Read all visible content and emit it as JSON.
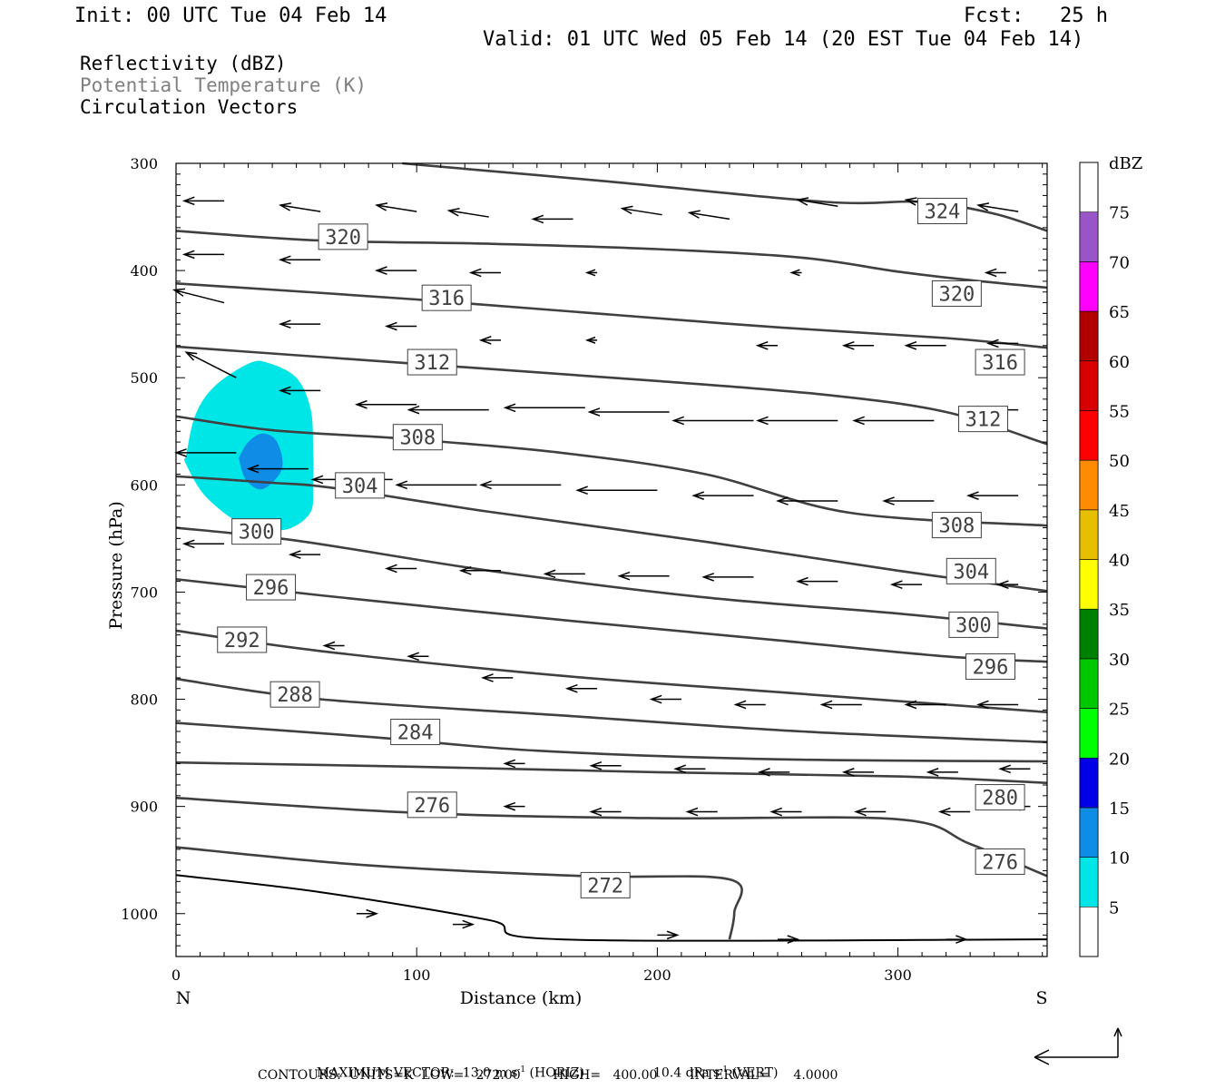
{
  "header": {
    "init": "Init: 00 UTC Tue 04 Feb 14",
    "fcst": "Fcst:   25 h",
    "valid": "Valid: 01 UTC Wed 05 Feb 14 (20 EST Tue 04 Feb 14)"
  },
  "legend_lines": {
    "reflectivity": "Reflectivity (dBZ)",
    "theta": "Potential Temperature (K)",
    "vectors": "Circulation Vectors"
  },
  "colors": {
    "contour": "#404040",
    "theta_text": "#808080",
    "refl_5": "#00e5e5",
    "refl_10": "#0f8ce6"
  },
  "chart_data": {
    "type": "contour",
    "xlabel": "Distance (km)",
    "ylabel": "Pressure (hPa)",
    "xlim": [
      0,
      362
    ],
    "ylim": [
      1040,
      300
    ],
    "x_ticks": [
      0,
      100,
      200,
      300
    ],
    "y_ticks": [
      300,
      400,
      500,
      600,
      700,
      800,
      900,
      1000
    ],
    "x_end_labels": {
      "left": "N",
      "right": "S"
    },
    "colorbar": {
      "title": "dBZ",
      "levels": [
        5,
        10,
        15,
        20,
        25,
        30,
        35,
        40,
        45,
        50,
        55,
        60,
        65,
        70,
        75
      ],
      "colors": [
        "#00e5e5",
        "#0f8ce6",
        "#0000e6",
        "#00ff00",
        "#00c800",
        "#008000",
        "#ffff00",
        "#e6c000",
        "#ff8c00",
        "#ff0000",
        "#d80000",
        "#b00000",
        "#ff00ff",
        "#9955c8",
        "#ffffff"
      ]
    },
    "theta_contours": [
      {
        "level": 324,
        "label": "324",
        "points": [
          [
            94,
            300
          ],
          [
            180,
            317
          ],
          [
            270,
            336
          ],
          [
            310,
            336
          ],
          [
            340,
            347
          ],
          [
            362,
            363
          ]
        ],
        "label_at": [
          309,
          347
        ]
      },
      {
        "level": 320,
        "label": "320",
        "points": [
          [
            0,
            363
          ],
          [
            60,
            372
          ],
          [
            130,
            375
          ],
          [
            200,
            380
          ],
          [
            260,
            388
          ],
          [
            300,
            401
          ],
          [
            330,
            409
          ],
          [
            362,
            416
          ]
        ],
        "label_at": [
          60,
          371
        ],
        "label2": [
          315,
          424
        ]
      },
      {
        "level": 316,
        "label": "316",
        "points": [
          [
            0,
            412
          ],
          [
            100,
            427
          ],
          [
            180,
            441
          ],
          [
            250,
            453
          ],
          [
            320,
            463
          ],
          [
            362,
            472
          ]
        ],
        "label_at": [
          103,
          428
        ],
        "label2": [
          333,
          488
        ]
      },
      {
        "level": 312,
        "label": "312",
        "points": [
          [
            0,
            471
          ],
          [
            100,
            487
          ],
          [
            200,
            503
          ],
          [
            270,
            516
          ],
          [
            320,
            532
          ],
          [
            362,
            562
          ]
        ],
        "label_at": [
          97,
          488
        ],
        "label2": [
          326,
          541
        ]
      },
      {
        "level": 308,
        "label": "308",
        "points": [
          [
            0,
            536
          ],
          [
            40,
            549
          ],
          [
            95,
            557
          ],
          [
            160,
            570
          ],
          [
            220,
            590
          ],
          [
            280,
            626
          ],
          [
            362,
            638
          ]
        ],
        "label_at": [
          91,
          558
        ],
        "label2": [
          315,
          640
        ]
      },
      {
        "level": 304,
        "label": "304",
        "points": [
          [
            0,
            592
          ],
          [
            40,
            598
          ],
          [
            66,
            603
          ],
          [
            130,
            625
          ],
          [
            220,
            653
          ],
          [
            300,
            680
          ],
          [
            362,
            699
          ]
        ],
        "label_at": [
          67,
          603
        ],
        "label2": [
          321,
          683
        ]
      },
      {
        "level": 300,
        "label": "300",
        "points": [
          [
            0,
            640
          ],
          [
            50,
            652
          ],
          [
            130,
            680
          ],
          [
            220,
            705
          ],
          [
            300,
            720
          ],
          [
            362,
            734
          ]
        ],
        "label_at": [
          24,
          646
        ],
        "label2": [
          322,
          733
        ]
      },
      {
        "level": 296,
        "label": "296",
        "points": [
          [
            0,
            688
          ],
          [
            60,
            703
          ],
          [
            160,
            726
          ],
          [
            250,
            745
          ],
          [
            320,
            760
          ],
          [
            362,
            765
          ]
        ],
        "label_at": [
          30,
          698
        ],
        "label2": [
          329,
          772
        ]
      },
      {
        "level": 292,
        "label": "292",
        "points": [
          [
            0,
            736
          ],
          [
            60,
            755
          ],
          [
            160,
            778
          ],
          [
            260,
            795
          ],
          [
            362,
            812
          ]
        ],
        "label_at": [
          18,
          747
        ]
      },
      {
        "level": 288,
        "label": "288",
        "points": [
          [
            0,
            781
          ],
          [
            60,
            800
          ],
          [
            160,
            815
          ],
          [
            260,
            830
          ],
          [
            362,
            840
          ]
        ]
      },
      {
        "level": 284,
        "label": "284",
        "points": [
          [
            0,
            822
          ],
          [
            80,
            835
          ],
          [
            150,
            848
          ],
          [
            250,
            856
          ],
          [
            362,
            858
          ]
        ],
        "label_at": [
          90,
          833
        ]
      },
      {
        "level": 280,
        "label": "280",
        "points": [
          [
            0,
            859
          ],
          [
            100,
            863
          ],
          [
            200,
            868
          ],
          [
            300,
            872
          ],
          [
            362,
            878
          ]
        ],
        "label2": [
          333,
          894
        ]
      },
      {
        "level": 276,
        "label": "276",
        "points": [
          [
            0,
            892
          ],
          [
            100,
            906
          ],
          [
            200,
            911
          ],
          [
            300,
            912
          ],
          [
            330,
            935
          ],
          [
            362,
            965
          ]
        ],
        "label_at": [
          97,
          901
        ],
        "label2": [
          333,
          954
        ]
      },
      {
        "level": 272,
        "label": "272",
        "points": [
          [
            0,
            938
          ],
          [
            80,
            955
          ],
          [
            170,
            965
          ],
          [
            230,
            968
          ],
          [
            232,
            999
          ],
          [
            230,
            1024
          ]
        ],
        "label_at": [
          169,
          976
        ]
      },
      {
        "level": "surface",
        "points": [
          [
            0,
            964
          ],
          [
            60,
            980
          ],
          [
            130,
            1006
          ],
          [
            160,
            1024
          ],
          [
            362,
            1024
          ]
        ]
      }
    ],
    "reflectivity_areas": [
      {
        "dbz": 5,
        "outline": [
          [
            4,
            575
          ],
          [
            8,
            535
          ],
          [
            16,
            508
          ],
          [
            30,
            487
          ],
          [
            38,
            486
          ],
          [
            50,
            500
          ],
          [
            56,
            530
          ],
          [
            57,
            570
          ],
          [
            57,
            600
          ],
          [
            56,
            625
          ],
          [
            48,
            640
          ],
          [
            38,
            642
          ],
          [
            26,
            635
          ],
          [
            12,
            610
          ],
          [
            4,
            580
          ]
        ]
      },
      {
        "dbz": 10,
        "outline": [
          [
            26,
            575
          ],
          [
            30,
            560
          ],
          [
            36,
            552
          ],
          [
            42,
            560
          ],
          [
            44,
            585
          ],
          [
            36,
            604
          ],
          [
            29,
            595
          ]
        ]
      }
    ],
    "wind_vectors": [
      [
        20,
        335,
        -4,
        0
      ],
      [
        60,
        345,
        -4,
        -1
      ],
      [
        100,
        345,
        -4,
        -1
      ],
      [
        130,
        350,
        -4,
        -1
      ],
      [
        165,
        352,
        -4,
        0
      ],
      [
        202,
        348,
        -4,
        -1
      ],
      [
        230,
        352,
        -4,
        -1
      ],
      [
        275,
        340,
        -4,
        -1
      ],
      [
        320,
        340,
        -4,
        -1
      ],
      [
        350,
        345,
        -4,
        -1
      ],
      [
        20,
        385,
        -4,
        0
      ],
      [
        60,
        390,
        -4,
        0
      ],
      [
        100,
        400,
        -4,
        0
      ],
      [
        135,
        402,
        -3,
        0
      ],
      [
        175,
        402,
        -1,
        0
      ],
      [
        260,
        402,
        -1,
        0
      ],
      [
        345,
        402,
        -2,
        0
      ],
      [
        20,
        430,
        -5,
        -2
      ],
      [
        60,
        450,
        -4,
        0
      ],
      [
        100,
        452,
        -3,
        0
      ],
      [
        135,
        465,
        -2,
        0
      ],
      [
        175,
        465,
        -1,
        0
      ],
      [
        250,
        470,
        -2,
        0
      ],
      [
        290,
        470,
        -3,
        0
      ],
      [
        320,
        470,
        -4,
        0
      ],
      [
        350,
        468,
        -3,
        0
      ],
      [
        25,
        500,
        -5,
        -4
      ],
      [
        60,
        512,
        -4,
        0
      ],
      [
        100,
        525,
        -6,
        0
      ],
      [
        130,
        530,
        -8,
        0
      ],
      [
        170,
        528,
        -8,
        0
      ],
      [
        205,
        532,
        -8,
        0
      ],
      [
        240,
        540,
        -8,
        0
      ],
      [
        275,
        540,
        -8,
        0
      ],
      [
        315,
        540,
        -8,
        0
      ],
      [
        350,
        530,
        -5,
        0
      ],
      [
        25,
        570,
        -6,
        0
      ],
      [
        55,
        585,
        -6,
        0
      ],
      [
        90,
        595,
        -8,
        0
      ],
      [
        125,
        600,
        -8,
        0
      ],
      [
        160,
        600,
        -8,
        0
      ],
      [
        200,
        605,
        -8,
        0
      ],
      [
        240,
        610,
        -6,
        0
      ],
      [
        275,
        615,
        -6,
        0
      ],
      [
        315,
        615,
        -5,
        0
      ],
      [
        350,
        610,
        -5,
        0
      ],
      [
        20,
        655,
        -4,
        0
      ],
      [
        60,
        665,
        -3,
        0
      ],
      [
        100,
        678,
        -3,
        0
      ],
      [
        135,
        680,
        -4,
        0
      ],
      [
        170,
        683,
        -4,
        0
      ],
      [
        205,
        685,
        -5,
        0
      ],
      [
        240,
        686,
        -5,
        0
      ],
      [
        275,
        690,
        -4,
        0
      ],
      [
        310,
        693,
        -3,
        0
      ],
      [
        350,
        693,
        -2,
        0
      ],
      [
        70,
        750,
        -2,
        0
      ],
      [
        105,
        760,
        -2,
        0
      ],
      [
        140,
        780,
        -3,
        0
      ],
      [
        175,
        790,
        -3,
        0
      ],
      [
        210,
        800,
        -3,
        0
      ],
      [
        245,
        805,
        -3,
        0
      ],
      [
        285,
        805,
        -4,
        0
      ],
      [
        320,
        805,
        -4,
        0
      ],
      [
        350,
        805,
        -4,
        0
      ],
      [
        145,
        860,
        -2,
        0
      ],
      [
        185,
        862,
        -3,
        0
      ],
      [
        220,
        865,
        -3,
        0
      ],
      [
        255,
        868,
        -3,
        0
      ],
      [
        290,
        868,
        -3,
        0
      ],
      [
        325,
        868,
        -3,
        0
      ],
      [
        355,
        865,
        -3,
        0
      ],
      [
        145,
        900,
        -2,
        0
      ],
      [
        185,
        905,
        -3,
        0
      ],
      [
        225,
        905,
        -3,
        0
      ],
      [
        260,
        905,
        -3,
        0
      ],
      [
        295,
        905,
        -3,
        0
      ],
      [
        330,
        905,
        -3,
        0
      ],
      [
        355,
        900,
        -2,
        0
      ],
      [
        75,
        1000,
        2,
        0
      ],
      [
        115,
        1010,
        2,
        0
      ],
      [
        200,
        1020,
        2,
        0
      ],
      [
        250,
        1024,
        2,
        0
      ],
      [
        320,
        1024,
        2,
        0
      ]
    ]
  },
  "footer": {
    "max_vector_pre": "MAXIMUM VECTOR:  13.0 m s",
    "max_vector_mid": " (HORIZ)",
    "max_vector_post": "10.4 dPa s",
    "max_vector_end": " (VERT)",
    "exp": "-1",
    "contours": "CONTOURS:  UNITS=K  LOW=   272.00        HIGH=   400.00        INTERVAL=      4.0000"
  }
}
